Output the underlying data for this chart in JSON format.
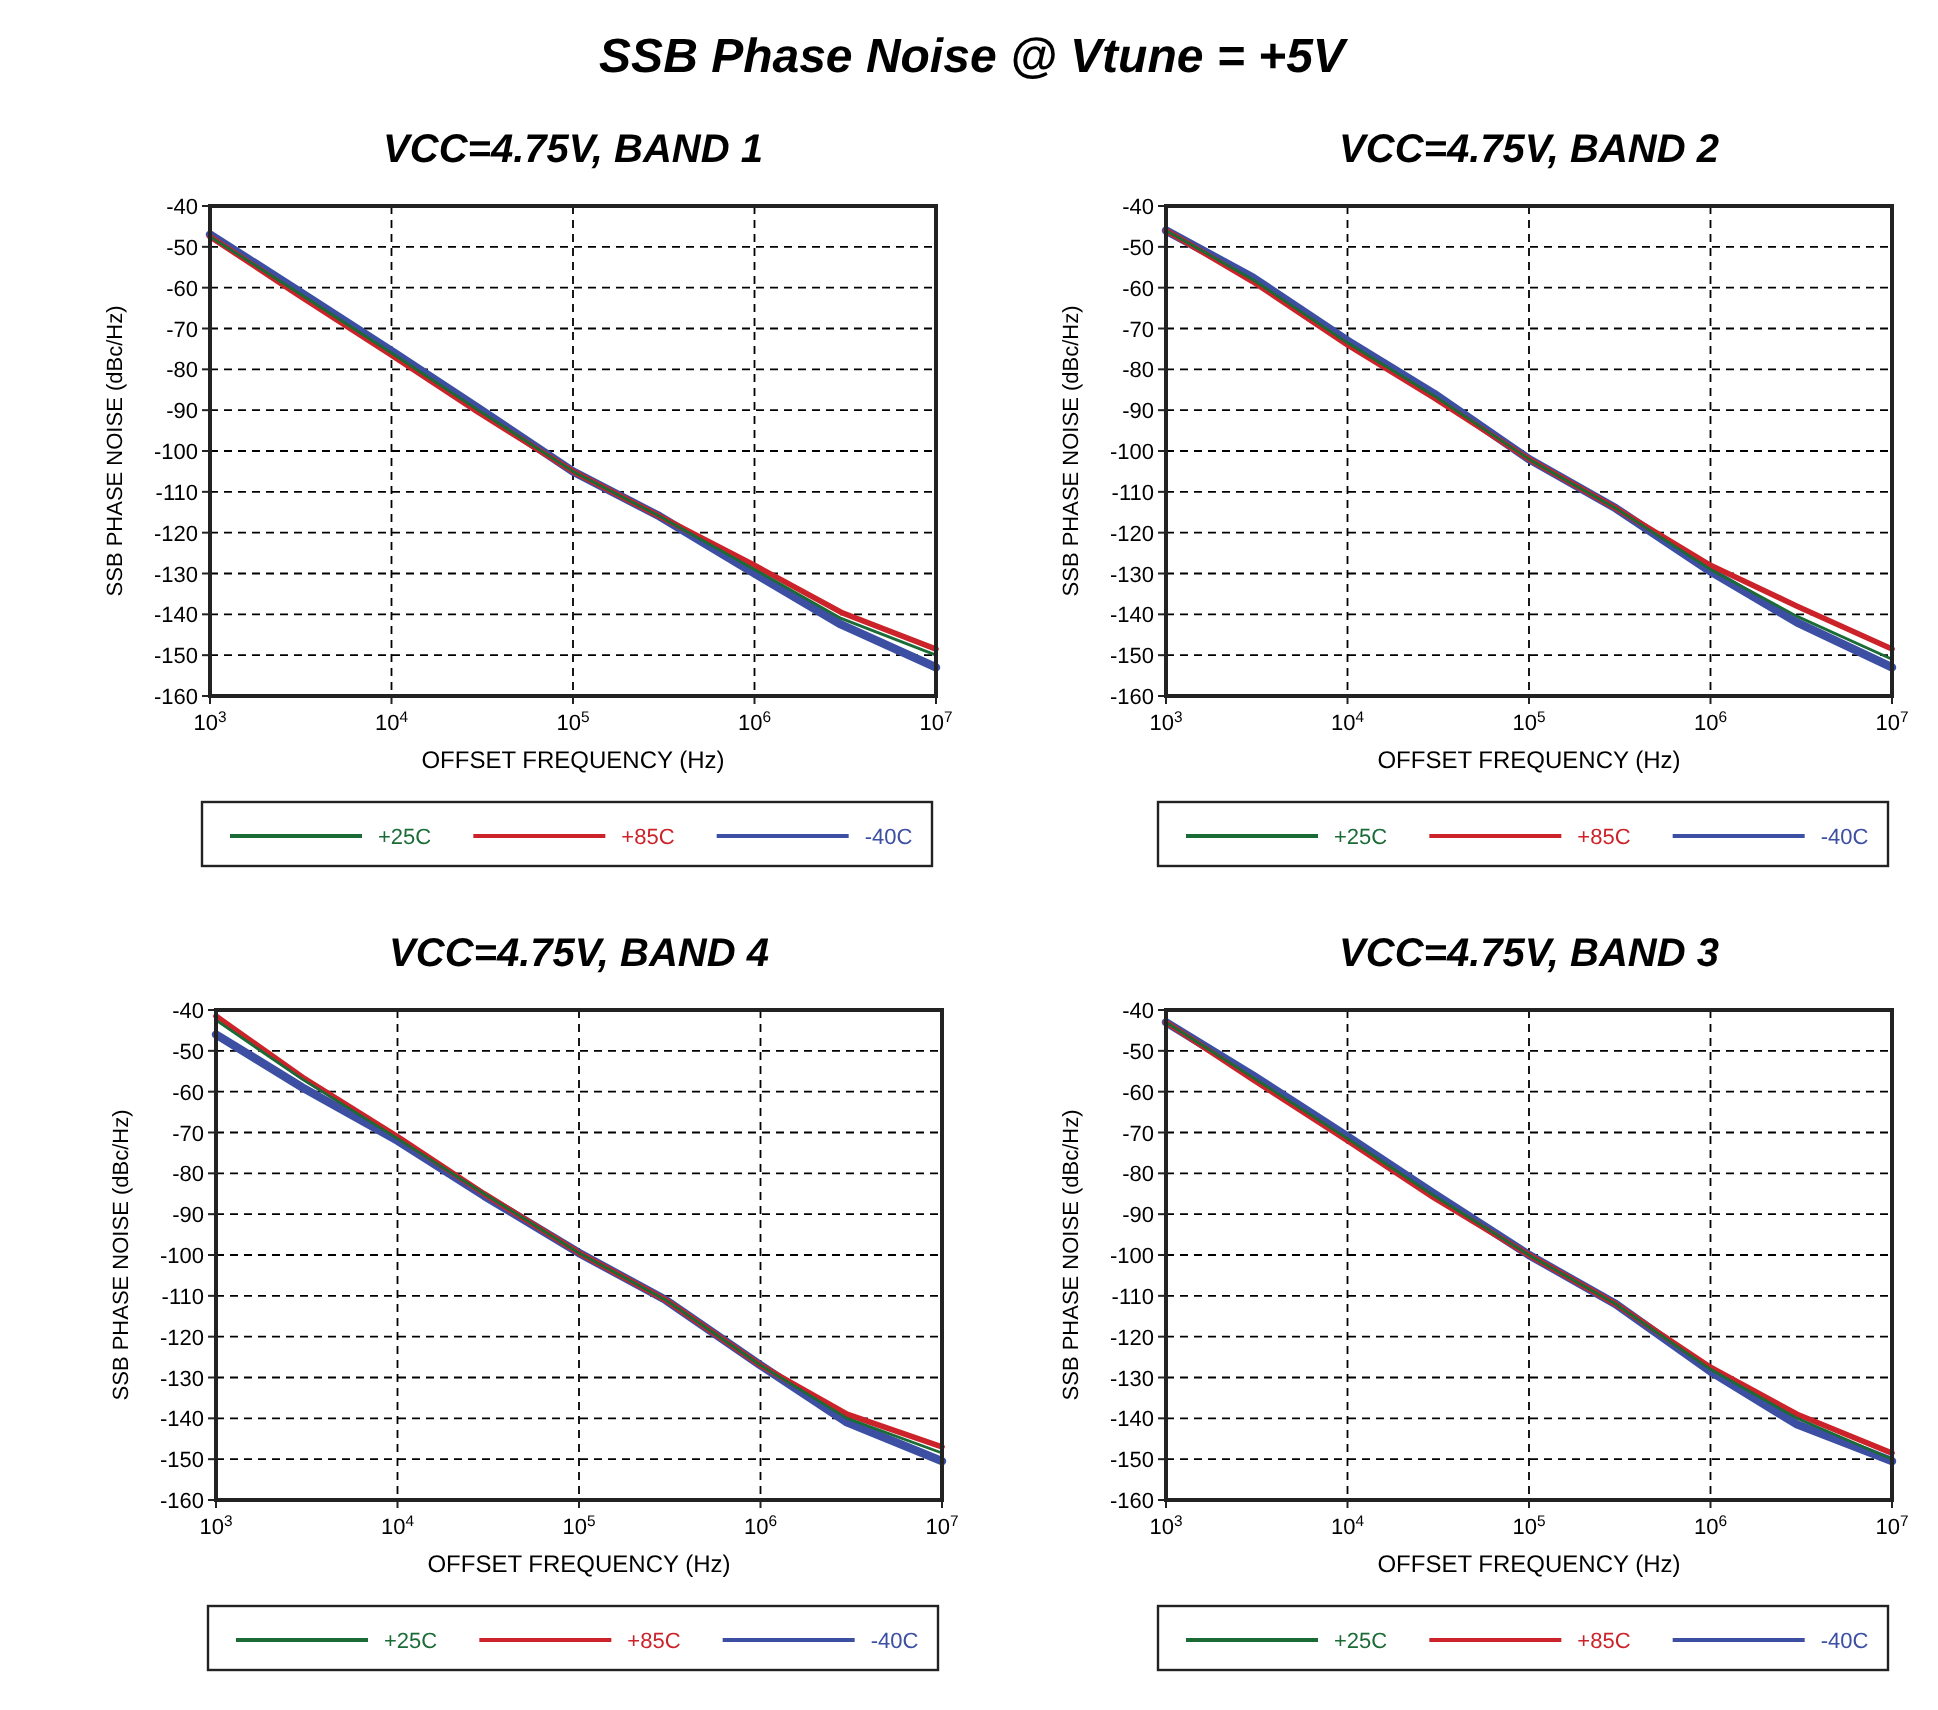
{
  "chart_data": [
    {
      "type": "line",
      "title": "VCC=4.75V, BAND 1",
      "annotations": [
        "SSB Phase Noise @ Vtune = +5V"
      ],
      "xlabel": "OFFSET FREQUENCY (Hz)",
      "ylabel": "SSB PHASE NOISE (dBc/Hz)",
      "log": "x",
      "grid": true,
      "legend": "bottom",
      "xlim": [
        1000,
        10000000
      ],
      "ylim": [
        -160,
        -40
      ],
      "xticks": [
        {
          "value": 1000,
          "label": "10$^{3}$"
        },
        {
          "value": 10000,
          "label": "10$^{4}$"
        },
        {
          "value": 100000,
          "label": "10$^{5}$"
        },
        {
          "value": 1000000,
          "label": "10$^{6}$"
        },
        {
          "value": 10000000,
          "label": "10$^{7}$"
        }
      ],
      "yticks": [
        -40,
        -50,
        -60,
        -70,
        -80,
        -90,
        -100,
        -110,
        -120,
        -130,
        -140,
        -150,
        -160
      ],
      "x": [
        1000,
        3000,
        10000,
        30000,
        100000,
        300000,
        1000000,
        3000000,
        10000000
      ],
      "series": [
        {
          "name": "+25C",
          "color": "#1a6b36",
          "values": [
            -47.5,
            -61,
            -76,
            -90,
            -105,
            -116,
            -129,
            -141,
            -150
          ]
        },
        {
          "name": "+85C",
          "color": "#cc2229",
          "values": [
            -47.5,
            -61.5,
            -76.5,
            -90.5,
            -105,
            -116,
            -128,
            -139.5,
            -148.5
          ]
        },
        {
          "name": "-40C",
          "color": "#3c4fa3",
          "values": [
            -47,
            -60.5,
            -75.5,
            -89.5,
            -105,
            -116,
            -130,
            -142.5,
            -153
          ]
        }
      ]
    },
    {
      "type": "line",
      "title": "VCC=4.75V, BAND 2",
      "xlabel": "OFFSET FREQUENCY (Hz)",
      "ylabel": "SSB PHASE NOISE (dBc/Hz)",
      "log": "x",
      "grid": true,
      "legend": "bottom",
      "xlim": [
        1000,
        10000000
      ],
      "ylim": [
        -160,
        -40
      ],
      "xticks": [
        {
          "value": 1000,
          "label": "10$^{3}$"
        },
        {
          "value": 10000,
          "label": "10$^{4}$"
        },
        {
          "value": 100000,
          "label": "10$^{5}$"
        },
        {
          "value": 1000000,
          "label": "10$^{6}$"
        },
        {
          "value": 10000000,
          "label": "10$^{7}$"
        }
      ],
      "yticks": [
        -40,
        -50,
        -60,
        -70,
        -80,
        -90,
        -100,
        -110,
        -120,
        -130,
        -140,
        -150,
        -160
      ],
      "x": [
        1000,
        3000,
        10000,
        30000,
        100000,
        300000,
        1000000,
        3000000,
        10000000
      ],
      "series": [
        {
          "name": "+25C",
          "color": "#1a6b36",
          "values": [
            -46,
            -58,
            -73.5,
            -86.5,
            -102,
            -114,
            -129,
            -140.5,
            -151
          ]
        },
        {
          "name": "+85C",
          "color": "#cc2229",
          "values": [
            -46,
            -58.5,
            -74,
            -87,
            -102,
            -114,
            -128,
            -138,
            -148.5
          ]
        },
        {
          "name": "-40C",
          "color": "#3c4fa3",
          "values": [
            -46,
            -57.5,
            -73,
            -86,
            -102,
            -114,
            -129.5,
            -142,
            -153
          ]
        }
      ]
    },
    {
      "type": "line",
      "title": "VCC=4.75V, BAND 4",
      "xlabel": "OFFSET FREQUENCY (Hz)",
      "ylabel": "SSB PHASE NOISE (dBc/Hz)",
      "log": "x",
      "grid": true,
      "legend": "bottom",
      "xlim": [
        1000,
        10000000
      ],
      "ylim": [
        -160,
        -40
      ],
      "xticks": [
        {
          "value": 1000,
          "label": "10$^{3}$"
        },
        {
          "value": 10000,
          "label": "10$^{4}$"
        },
        {
          "value": 100000,
          "label": "10$^{5}$"
        },
        {
          "value": 1000000,
          "label": "10$^{6}$"
        },
        {
          "value": 10000000,
          "label": "10$^{7}$"
        }
      ],
      "yticks": [
        -40,
        -50,
        -60,
        -70,
        -80,
        -90,
        -100,
        -110,
        -120,
        -130,
        -140,
        -150,
        -160
      ],
      "x": [
        1000,
        3000,
        10000,
        30000,
        100000,
        300000,
        1000000,
        3000000,
        10000000
      ],
      "series": [
        {
          "name": "+25C",
          "color": "#1a6b36",
          "values": [
            -42.5,
            -57,
            -71.5,
            -85,
            -99.5,
            -111,
            -127,
            -140,
            -148.5
          ]
        },
        {
          "name": "+85C",
          "color": "#cc2229",
          "values": [
            -41.5,
            -56.5,
            -71,
            -85,
            -99.5,
            -111,
            -127,
            -139,
            -147
          ]
        },
        {
          "name": "-40C",
          "color": "#3c4fa3",
          "values": [
            -46,
            -59,
            -72,
            -85.5,
            -99.5,
            -111,
            -127,
            -141,
            -150.5
          ]
        }
      ]
    },
    {
      "type": "line",
      "title": "VCC=4.75V, BAND 3",
      "xlabel": "OFFSET FREQUENCY (Hz)",
      "ylabel": "SSB PHASE NOISE (dBc/Hz)",
      "log": "x",
      "grid": true,
      "legend": "bottom",
      "xlim": [
        1000,
        10000000
      ],
      "ylim": [
        -160,
        -40
      ],
      "xticks": [
        {
          "value": 1000,
          "label": "10$^{3}$"
        },
        {
          "value": 10000,
          "label": "10$^{4}$"
        },
        {
          "value": 100000,
          "label": "10$^{5}$"
        },
        {
          "value": 1000000,
          "label": "10$^{6}$"
        },
        {
          "value": 10000000,
          "label": "10$^{7}$"
        }
      ],
      "yticks": [
        -40,
        -50,
        -60,
        -70,
        -80,
        -90,
        -100,
        -110,
        -120,
        -130,
        -140,
        -150,
        -160
      ],
      "x": [
        1000,
        3000,
        10000,
        30000,
        100000,
        300000,
        1000000,
        3000000,
        10000000
      ],
      "series": [
        {
          "name": "+25C",
          "color": "#1a6b36",
          "values": [
            -43,
            -56.5,
            -71.5,
            -85.5,
            -100,
            -112,
            -128,
            -140,
            -150
          ]
        },
        {
          "name": "+85C",
          "color": "#cc2229",
          "values": [
            -43,
            -57,
            -72,
            -86,
            -100,
            -112,
            -127.5,
            -139,
            -148.5
          ]
        },
        {
          "name": "-40C",
          "color": "#3c4fa3",
          "values": [
            -43,
            -56,
            -71,
            -85,
            -100,
            -112,
            -128.5,
            -141.5,
            -150.5
          ]
        }
      ]
    }
  ]
}
